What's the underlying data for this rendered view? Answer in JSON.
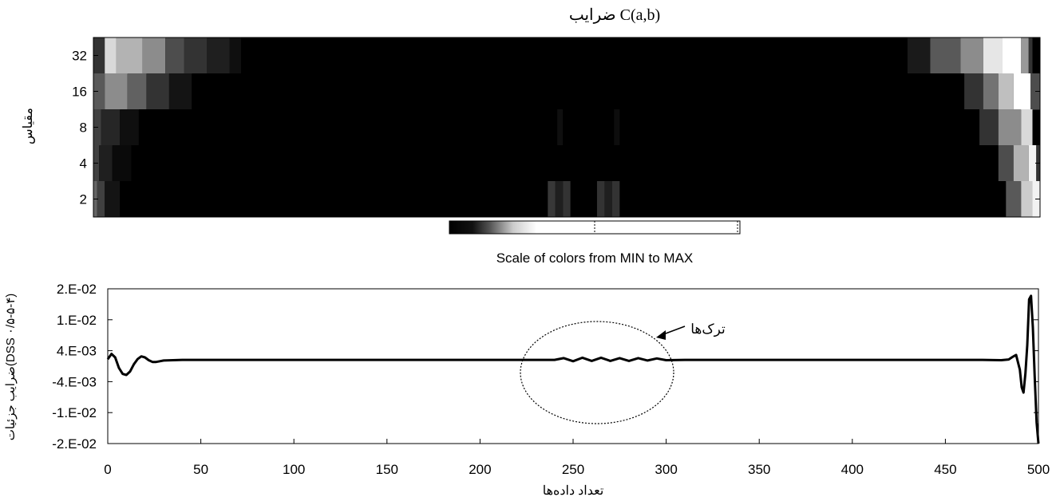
{
  "chart_data": [
    {
      "type": "heatmap",
      "title": "ضرایب C(a,b)",
      "ylabel": "مقیاس",
      "y_ticks": [
        "32",
        "16",
        "8",
        "4",
        "2"
      ],
      "x_range": [
        0,
        500
      ],
      "rows": [
        {
          "scale": "32",
          "bands": [
            [
              0,
              6,
              0.2
            ],
            [
              6,
              12,
              0.85
            ],
            [
              12,
              26,
              0.7
            ],
            [
              26,
              38,
              0.55
            ],
            [
              38,
              48,
              0.3
            ],
            [
              48,
              60,
              0.2
            ],
            [
              60,
              72,
              0.12
            ],
            [
              72,
              78,
              0.06
            ],
            [
              78,
              430,
              0.0
            ],
            [
              430,
              442,
              0.1
            ],
            [
              442,
              458,
              0.35
            ],
            [
              458,
              470,
              0.55
            ],
            [
              470,
              480,
              0.9
            ],
            [
              480,
              490,
              1.0
            ],
            [
              490,
              494,
              0.6
            ],
            [
              494,
              496,
              0.2
            ]
          ]
        },
        {
          "scale": "16",
          "bands": [
            [
              0,
              6,
              0.35
            ],
            [
              6,
              18,
              0.55
            ],
            [
              18,
              28,
              0.38
            ],
            [
              28,
              40,
              0.2
            ],
            [
              40,
              52,
              0.08
            ],
            [
              52,
              460,
              0.0
            ],
            [
              460,
              470,
              0.2
            ],
            [
              470,
              478,
              0.45
            ],
            [
              478,
              486,
              0.75
            ],
            [
              486,
              495,
              1.0
            ],
            [
              495,
              500,
              0.3
            ]
          ]
        },
        {
          "scale": "8",
          "bands": [
            [
              0,
              4,
              0.25
            ],
            [
              4,
              14,
              0.15
            ],
            [
              14,
              24,
              0.06
            ],
            [
              24,
              245,
              0.0
            ],
            [
              245,
              248,
              0.06
            ],
            [
              248,
              275,
              0.0
            ],
            [
              275,
              278,
              0.05
            ],
            [
              278,
              468,
              0.0
            ],
            [
              468,
              478,
              0.2
            ],
            [
              478,
              490,
              0.55
            ],
            [
              490,
              496,
              0.85
            ]
          ]
        },
        {
          "scale": "4",
          "bands": [
            [
              0,
              3,
              0.25
            ],
            [
              3,
              10,
              0.12
            ],
            [
              10,
              20,
              0.04
            ],
            [
              20,
              478,
              0.0
            ],
            [
              478,
              486,
              0.3
            ],
            [
              486,
              494,
              0.7
            ],
            [
              494,
              498,
              0.95
            ],
            [
              498,
              500,
              0.2
            ]
          ]
        },
        {
          "scale": "2",
          "bands": [
            [
              0,
              2,
              0.4
            ],
            [
              2,
              6,
              0.25
            ],
            [
              6,
              14,
              0.08
            ],
            [
              14,
              240,
              0.0
            ],
            [
              240,
              244,
              0.22
            ],
            [
              244,
              248,
              0.12
            ],
            [
              248,
              252,
              0.2
            ],
            [
              252,
              266,
              0.0
            ],
            [
              266,
              270,
              0.2
            ],
            [
              270,
              274,
              0.12
            ],
            [
              274,
              278,
              0.2
            ],
            [
              278,
              482,
              0.0
            ],
            [
              482,
              490,
              0.35
            ],
            [
              490,
              496,
              0.8
            ],
            [
              496,
              500,
              0.95
            ]
          ]
        }
      ],
      "colorbar_label": "Scale of colors from MIN to MAX"
    },
    {
      "type": "line",
      "xlabel": "تعداد داده‌ها",
      "ylabel": "ضرایب جزئیات(DSS ۰/۵-۵-۴)",
      "x_ticks": [
        "0",
        "50",
        "100",
        "150",
        "200",
        "250",
        "300",
        "350",
        "400",
        "450",
        "500"
      ],
      "y_ticks": [
        "2.E-02",
        "1.E-02",
        "4.E-03",
        "-4.E-03",
        "-1.E-02",
        "-2.E-02"
      ],
      "xlim": [
        0,
        500
      ],
      "ylim": [
        -0.024,
        0.02
      ],
      "series": [
        {
          "x": [
            0,
            2,
            4,
            6,
            8,
            10,
            12,
            14,
            16,
            18,
            20,
            22,
            24,
            26,
            28,
            30,
            35,
            40,
            60,
            100,
            200,
            240,
            245,
            250,
            255,
            260,
            265,
            270,
            275,
            280,
            285,
            290,
            295,
            300,
            310,
            400,
            470,
            480,
            484,
            486,
            488,
            490,
            491,
            492,
            493,
            494,
            495,
            496,
            497,
            498,
            499,
            500
          ],
          "y": [
            0.0,
            0.0015,
            0.0005,
            -0.0025,
            -0.0042,
            -0.0045,
            -0.0035,
            -0.0015,
            0.0,
            0.0008,
            0.0005,
            -0.0003,
            -0.0008,
            -0.0008,
            -0.0006,
            -0.0004,
            -0.0003,
            -0.0002,
            -0.0002,
            -0.0002,
            -0.0002,
            -0.0002,
            0.0003,
            -0.0006,
            0.0004,
            -0.0005,
            0.0004,
            -0.0005,
            0.0003,
            -0.0005,
            0.0003,
            -0.0004,
            0.0002,
            -0.0003,
            -0.0002,
            -0.0002,
            -0.0002,
            -0.0003,
            -0.0001,
            0.0006,
            0.0012,
            -0.003,
            -0.008,
            -0.0095,
            -0.004,
            0.004,
            0.017,
            0.018,
            0.009,
            -0.005,
            -0.018,
            -0.024
          ]
        }
      ],
      "annotation": "ترک‌ها"
    }
  ]
}
